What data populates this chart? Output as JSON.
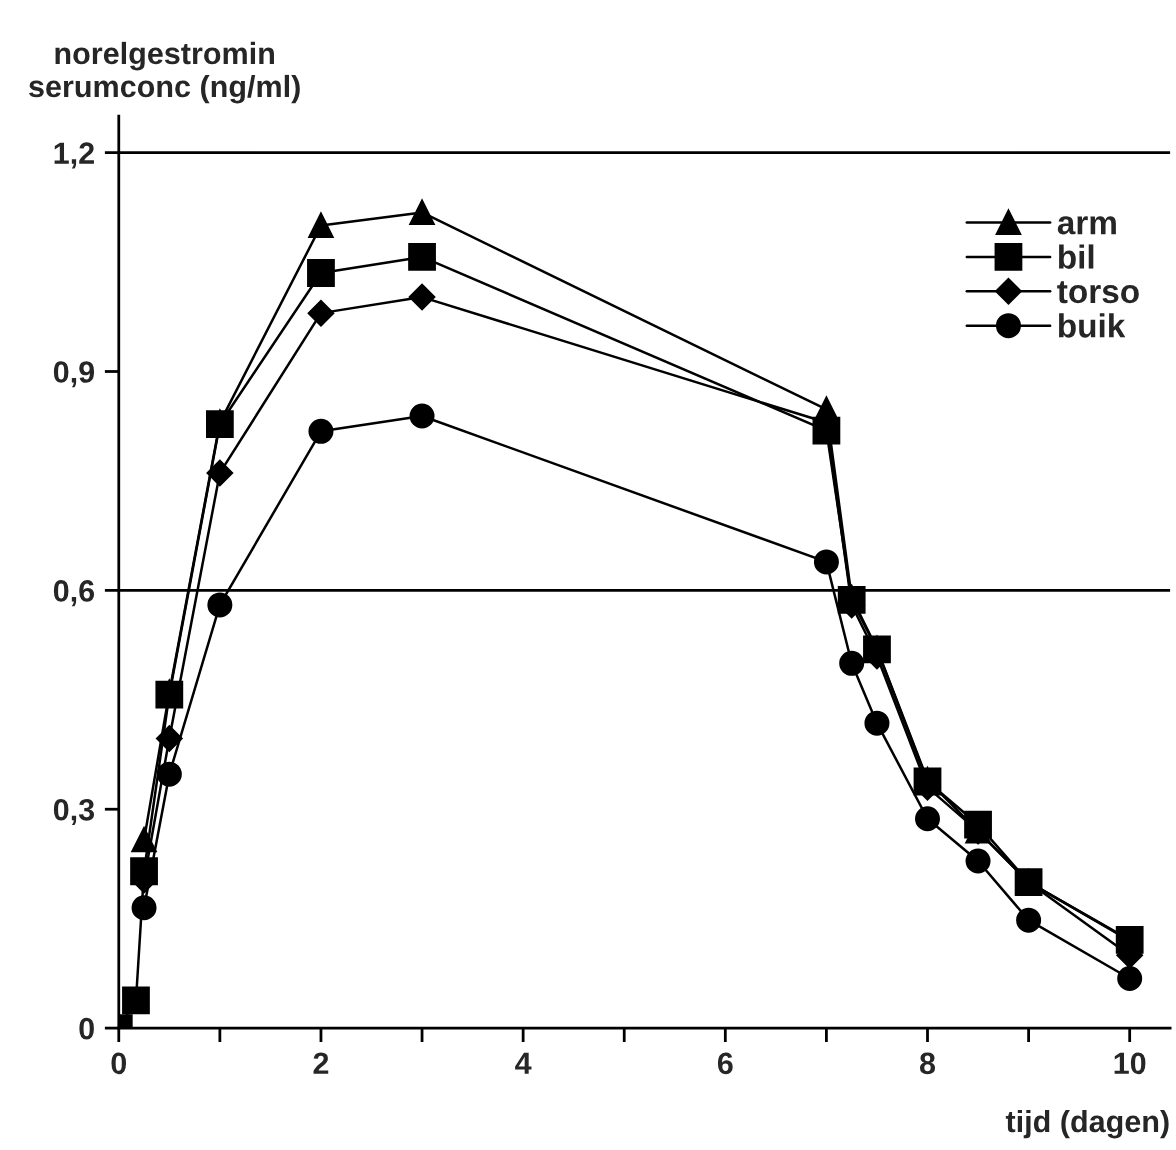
{
  "chart_data": {
    "type": "line",
    "xlabel": "tijd (dagen)",
    "ylabel": "norelgestromin\nserumconc (ng/ml)",
    "x": [
      0,
      0.17,
      0.25,
      0.5,
      1,
      2,
      3,
      7,
      7.25,
      7.5,
      8,
      8.5,
      9,
      10
    ],
    "series": [
      {
        "name": "arm",
        "color": "#000000",
        "marker": "triangle",
        "values": [
          null,
          null,
          0.258,
          0.46,
          0.83,
          1.1,
          1.118,
          0.848,
          0.59,
          0.52,
          0.34,
          0.27,
          0.2,
          0.12
        ]
      },
      {
        "name": "bil",
        "color": "#000000",
        "marker": "square",
        "values": [
          0,
          0.038,
          0.215,
          0.457,
          0.828,
          1.035,
          1.057,
          0.819,
          0.587,
          0.519,
          0.338,
          0.279,
          0.2,
          0.121
        ]
      },
      {
        "name": "torso",
        "color": "#000000",
        "marker": "diamond",
        "values": [
          null,
          null,
          0.203,
          0.397,
          0.761,
          0.98,
          1.002,
          0.83,
          0.58,
          0.51,
          0.33,
          0.27,
          0.2,
          0.1
        ]
      },
      {
        "name": "buik",
        "color": "#000000",
        "marker": "circle",
        "values": [
          null,
          null,
          0.165,
          0.348,
          0.58,
          0.818,
          0.839,
          0.639,
          0.5,
          0.418,
          0.287,
          0.229,
          0.148,
          0.068
        ]
      }
    ],
    "xlim": [
      0,
      10.4
    ],
    "ylim": [
      0,
      1.25
    ],
    "xticks": [
      0,
      {
        "value": 1,
        "label": null
      },
      2,
      {
        "value": 3,
        "label": null
      },
      4,
      {
        "value": 5,
        "label": null
      },
      6,
      {
        "value": 7,
        "label": null
      },
      8,
      {
        "value": 9,
        "label": null
      },
      10
    ],
    "yticks": [
      0,
      {
        "value": 0.3,
        "label": "0,3"
      },
      {
        "value": 0.6,
        "label": "0,6"
      },
      {
        "value": 0.9,
        "label": "0,9"
      },
      {
        "value": 1.2,
        "label": "1,2"
      }
    ],
    "ref_lines": [
      {
        "axis": "y",
        "value": 0.6,
        "color": "#000000"
      },
      {
        "axis": "y",
        "value": 1.2,
        "color": "#000000"
      }
    ],
    "grid": false,
    "legend": "top right",
    "line_style": "solid"
  }
}
